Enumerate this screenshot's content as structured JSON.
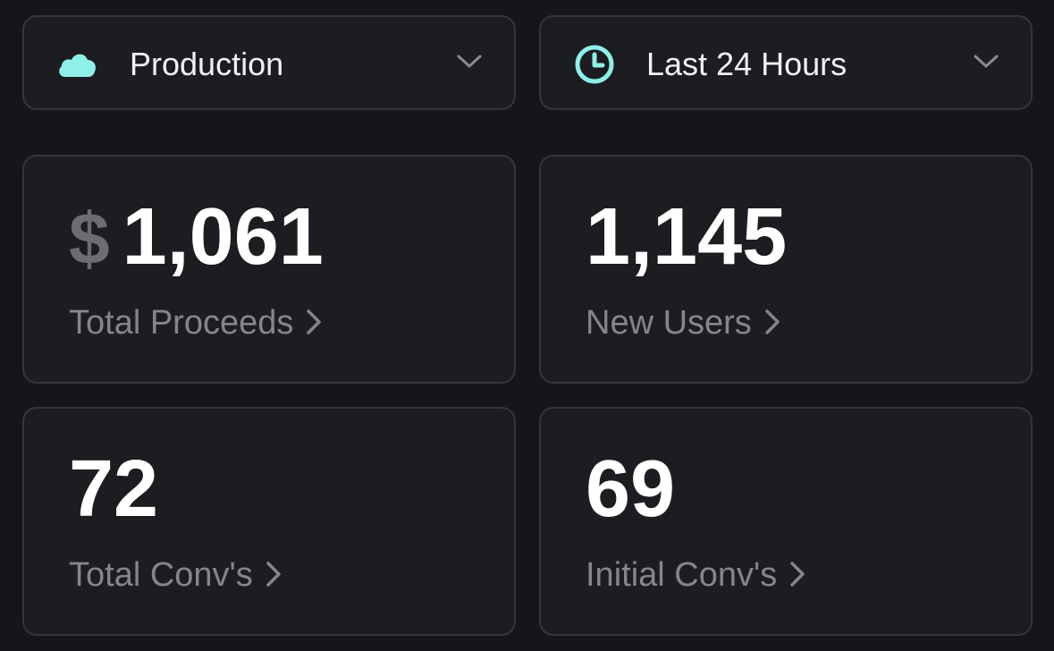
{
  "filters": {
    "environment": "Production",
    "time_range": "Last 24 Hours"
  },
  "metrics": [
    {
      "prefix": "$",
      "value": "1,061",
      "label": "Total Proceeds"
    },
    {
      "value": "1,145",
      "label": "New Users"
    },
    {
      "value": "72",
      "label": "Total Conv's"
    },
    {
      "value": "69",
      "label": "Initial Conv's"
    }
  ]
}
